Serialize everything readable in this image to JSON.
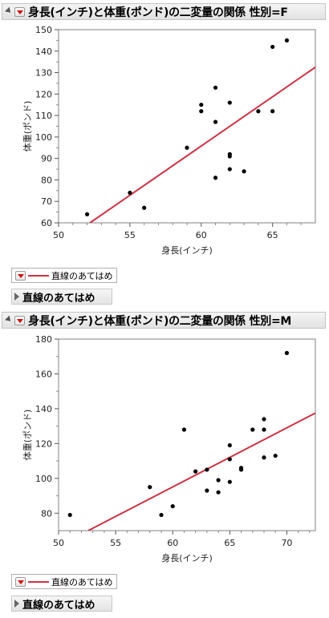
{
  "panels": [
    {
      "header_title": "身長(インチ)と体重(ポンド)の二変量の関係 性別=F",
      "legend_label": "直線のあてはめ",
      "fit_label": "直線のあてはめ",
      "colors": {
        "fit_line": "#cc3344",
        "points": "#000000"
      }
    },
    {
      "header_title": "身長(インチ)と体重(ポンド)の二変量の関係 性別=M",
      "legend_label": "直線のあてはめ",
      "fit_label": "直線のあてはめ",
      "colors": {
        "fit_line": "#cc3344",
        "points": "#000000"
      }
    }
  ],
  "chart_data": [
    {
      "type": "scatter",
      "title": "身長(インチ)と体重(ポンド)の二変量の関係 性別=F",
      "xlabel": "身長(インチ)",
      "ylabel": "体重(ポンド)",
      "xlim": [
        50,
        68
      ],
      "ylim": [
        60,
        150
      ],
      "xticks": [
        50,
        55,
        60,
        65
      ],
      "yticks": [
        60,
        70,
        80,
        90,
        100,
        110,
        120,
        130,
        140,
        150
      ],
      "points": [
        {
          "x": 52,
          "y": 64
        },
        {
          "x": 55,
          "y": 74
        },
        {
          "x": 56,
          "y": 67
        },
        {
          "x": 59,
          "y": 95
        },
        {
          "x": 60,
          "y": 112
        },
        {
          "x": 60,
          "y": 115
        },
        {
          "x": 61,
          "y": 123
        },
        {
          "x": 61,
          "y": 107
        },
        {
          "x": 61,
          "y": 81
        },
        {
          "x": 62,
          "y": 116
        },
        {
          "x": 62,
          "y": 92
        },
        {
          "x": 62,
          "y": 91
        },
        {
          "x": 62,
          "y": 85
        },
        {
          "x": 63,
          "y": 84
        },
        {
          "x": 64,
          "y": 112
        },
        {
          "x": 65,
          "y": 112
        },
        {
          "x": 65,
          "y": 142
        },
        {
          "x": 66,
          "y": 145
        }
      ],
      "fit_line": {
        "x0": 52.2,
        "y0": 60,
        "x1": 68,
        "y1": 132.5
      },
      "grid": false
    },
    {
      "type": "scatter",
      "title": "身長(インチ)と体重(ポンド)の二変量の関係 性別=M",
      "xlabel": "身長(インチ)",
      "ylabel": "体重(ポンド)",
      "xlim": [
        50,
        72.5
      ],
      "ylim": [
        70,
        180
      ],
      "xticks": [
        50,
        55,
        60,
        65,
        70
      ],
      "yticks": [
        80,
        100,
        120,
        140,
        160,
        180
      ],
      "points": [
        {
          "x": 51,
          "y": 79
        },
        {
          "x": 58,
          "y": 95
        },
        {
          "x": 59,
          "y": 79
        },
        {
          "x": 60,
          "y": 84
        },
        {
          "x": 61,
          "y": 128
        },
        {
          "x": 62,
          "y": 104
        },
        {
          "x": 63,
          "y": 105
        },
        {
          "x": 63,
          "y": 93
        },
        {
          "x": 64,
          "y": 99
        },
        {
          "x": 64,
          "y": 92
        },
        {
          "x": 65,
          "y": 119
        },
        {
          "x": 65,
          "y": 111
        },
        {
          "x": 65,
          "y": 98
        },
        {
          "x": 66,
          "y": 106
        },
        {
          "x": 66,
          "y": 105
        },
        {
          "x": 67,
          "y": 128
        },
        {
          "x": 68,
          "y": 134
        },
        {
          "x": 68,
          "y": 128
        },
        {
          "x": 68,
          "y": 112
        },
        {
          "x": 69,
          "y": 113
        },
        {
          "x": 70,
          "y": 172
        }
      ],
      "fit_line": {
        "x0": 52.6,
        "y0": 70,
        "x1": 72.5,
        "y1": 137.5
      },
      "grid": false
    }
  ]
}
